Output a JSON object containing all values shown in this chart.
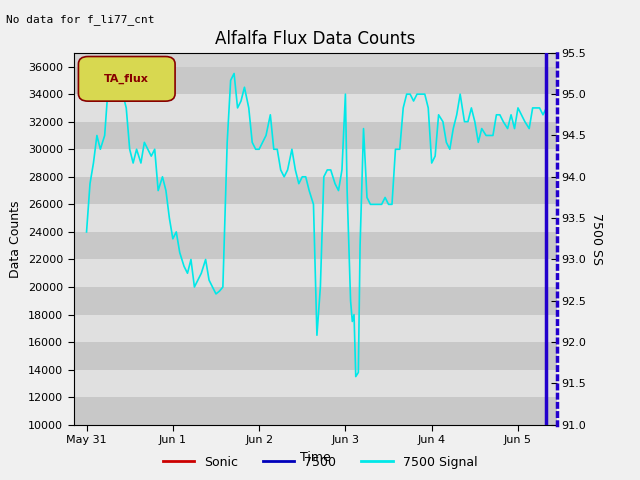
{
  "title": "Alfalfa Flux Data Counts",
  "top_left_text": "No data for f_li77_cnt",
  "legend_box_label": "TA_flux",
  "xlabel": "Time",
  "ylabel": "Data Counts",
  "ylabel_right": "7500 SS",
  "xlim": [
    -0.15,
    5.45
  ],
  "ylim_left": [
    10000,
    37000
  ],
  "ylim_right": [
    91.0,
    95.5
  ],
  "yticks_left": [
    10000,
    12000,
    14000,
    16000,
    18000,
    20000,
    22000,
    24000,
    26000,
    28000,
    30000,
    32000,
    34000,
    36000
  ],
  "yticks_right": [
    91.0,
    91.5,
    92.0,
    92.5,
    93.0,
    93.5,
    94.0,
    94.5,
    95.0,
    95.5
  ],
  "xtick_labels": [
    "May 31",
    "Jun 1",
    "Jun 2",
    "Jun 3",
    "Jun 4",
    "Jun 5"
  ],
  "xtick_positions": [
    0,
    1,
    2,
    3,
    4,
    5
  ],
  "fig_bg": "#f0f0f0",
  "plot_bg": "#d4d4d4",
  "band_dark": "#c8c8c8",
  "band_light": "#e0e0e0",
  "line_color_signal": "#00e8e8",
  "line_color_7500": "#0000bb",
  "line_color_sonic": "#cc0000",
  "right_spine_color": "#2200cc",
  "legend_box_bg": "#d8d850",
  "legend_box_border": "#880000",
  "title_fontsize": 12,
  "label_fontsize": 9,
  "tick_fontsize": 8,
  "signal_x": [
    0.0,
    0.04,
    0.08,
    0.12,
    0.16,
    0.21,
    0.25,
    0.29,
    0.33,
    0.38,
    0.42,
    0.46,
    0.5,
    0.54,
    0.58,
    0.63,
    0.67,
    0.71,
    0.75,
    0.79,
    0.83,
    0.88,
    0.92,
    0.96,
    1.0,
    1.04,
    1.08,
    1.13,
    1.17,
    1.21,
    1.25,
    1.29,
    1.33,
    1.38,
    1.42,
    1.46,
    1.5,
    1.54,
    1.58,
    1.63,
    1.67,
    1.71,
    1.75,
    1.79,
    1.83,
    1.88,
    1.92,
    1.96,
    2.0,
    2.04,
    2.08,
    2.13,
    2.17,
    2.21,
    2.25,
    2.29,
    2.33,
    2.38,
    2.42,
    2.46,
    2.5,
    2.54,
    2.58,
    2.63,
    2.67,
    2.71,
    2.75,
    2.79,
    2.83,
    2.88,
    2.92,
    2.96,
    3.0,
    3.02,
    3.04,
    3.06,
    3.08,
    3.1,
    3.12,
    3.15,
    3.17,
    3.21,
    3.25,
    3.29,
    3.33,
    3.38,
    3.42,
    3.46,
    3.5,
    3.54,
    3.58,
    3.63,
    3.67,
    3.71,
    3.75,
    3.79,
    3.83,
    3.88,
    3.92,
    3.96,
    4.0,
    4.04,
    4.08,
    4.13,
    4.17,
    4.21,
    4.25,
    4.29,
    4.33,
    4.38,
    4.42,
    4.46,
    4.5,
    4.54,
    4.58,
    4.63,
    4.67,
    4.71,
    4.75,
    4.79,
    4.83,
    4.88,
    4.92,
    4.96,
    5.0,
    5.04,
    5.08,
    5.13,
    5.17,
    5.21,
    5.25,
    5.29,
    5.33
  ],
  "signal_y": [
    24000,
    27500,
    29000,
    31000,
    30000,
    31000,
    34500,
    35500,
    35000,
    34500,
    34000,
    33000,
    30000,
    29000,
    30000,
    29000,
    30500,
    30000,
    29500,
    30000,
    27000,
    28000,
    27000,
    25000,
    23500,
    24000,
    22500,
    21500,
    21000,
    22000,
    20000,
    20500,
    21000,
    22000,
    20500,
    20000,
    19500,
    19700,
    20000,
    30500,
    35000,
    35500,
    33000,
    33500,
    34500,
    33000,
    30500,
    30000,
    30000,
    30500,
    31000,
    32500,
    30000,
    30000,
    28500,
    28000,
    28500,
    30000,
    28500,
    27500,
    28000,
    28000,
    27000,
    26000,
    16500,
    20000,
    28000,
    28500,
    28500,
    27500,
    27000,
    28500,
    34000,
    27000,
    23000,
    19000,
    17500,
    18000,
    13500,
    13800,
    23000,
    31500,
    26500,
    26000,
    26000,
    26000,
    26000,
    26500,
    26000,
    26000,
    30000,
    30000,
    33000,
    34000,
    34000,
    33500,
    34000,
    34000,
    34000,
    33000,
    29000,
    29500,
    32500,
    32000,
    30500,
    30000,
    31500,
    32500,
    34000,
    32000,
    32000,
    33000,
    32000,
    30500,
    31500,
    31000,
    31000,
    31000,
    32500,
    32500,
    32000,
    31500,
    32500,
    31500,
    33000,
    32500,
    32000,
    31500,
    33000,
    33000,
    33000,
    32500,
    33000
  ]
}
